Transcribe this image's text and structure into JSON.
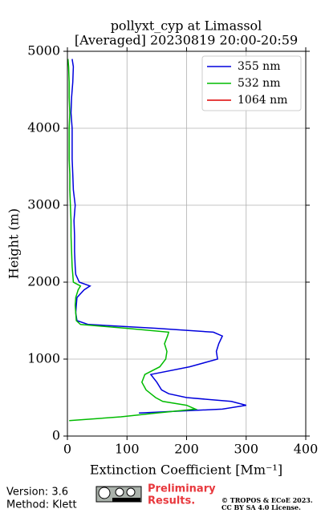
{
  "chart_data": {
    "type": "line",
    "title": [
      "pollyxt_cyp at Limassol",
      "[Averaged] 20230819 20:00-20:59"
    ],
    "xlabel": "Extinction Coefficient [Mm⁻¹]",
    "ylabel": "Height (m)",
    "heights": [
      200,
      250,
      300,
      350,
      400,
      450,
      500,
      550,
      600,
      700,
      800,
      900,
      1000,
      1100,
      1200,
      1300,
      1350,
      1400,
      1450,
      1500,
      1600,
      1700,
      1800,
      1900,
      1950,
      2000,
      2100,
      2200,
      2400,
      2600,
      2800,
      3000,
      3200,
      3400,
      3600,
      3800,
      4000,
      4200,
      4400,
      4600,
      4800,
      4900
    ],
    "series": [
      {
        "name": "355 nm",
        "color": "#0000dd",
        "values": [
          null,
          null,
          120,
          260,
          300,
          275,
          200,
          170,
          158,
          150,
          140,
          205,
          252,
          250,
          254,
          260,
          245,
          150,
          35,
          16,
          14,
          15,
          16,
          28,
          38,
          20,
          14,
          13,
          12,
          12,
          11,
          13,
          10,
          9,
          8,
          8,
          8,
          6,
          7,
          9,
          10,
          8
        ]
      },
      {
        "name": "532 nm",
        "color": "#00bb00",
        "values": [
          3,
          90,
          150,
          215,
          200,
          160,
          148,
          140,
          132,
          125,
          130,
          155,
          165,
          167,
          163,
          168,
          170,
          100,
          22,
          15,
          14,
          13,
          14,
          18,
          22,
          10,
          9,
          8,
          7,
          6,
          6,
          5,
          4,
          4,
          3,
          3,
          3,
          4,
          3,
          3,
          2,
          1
        ]
      },
      {
        "name": "1064 nm",
        "color": "#dd0000",
        "values": [
          null,
          null,
          null,
          null,
          null,
          null,
          null,
          null,
          null,
          null,
          null,
          null,
          null,
          null,
          null,
          null,
          null,
          null,
          null,
          null,
          null,
          null,
          null,
          null,
          null,
          null,
          null,
          null,
          null,
          null,
          null,
          null,
          null,
          null,
          null,
          null,
          null,
          null,
          null,
          null,
          null,
          null
        ]
      }
    ],
    "xlim": [
      0,
      400
    ],
    "xticks": [
      0,
      100,
      200,
      300,
      400
    ],
    "ylim": [
      0,
      5000
    ],
    "yticks": [
      0,
      1000,
      2000,
      3000,
      4000,
      5000
    ],
    "grid": true,
    "legend": "upper right"
  },
  "footer": {
    "version": "Version: 3.6",
    "method": "Method: Klett",
    "notice": [
      "Preliminary",
      "Results."
    ],
    "copyright": [
      "© TROPOS & ECoE 2023.",
      "CC BY SA 4.0 License."
    ]
  }
}
